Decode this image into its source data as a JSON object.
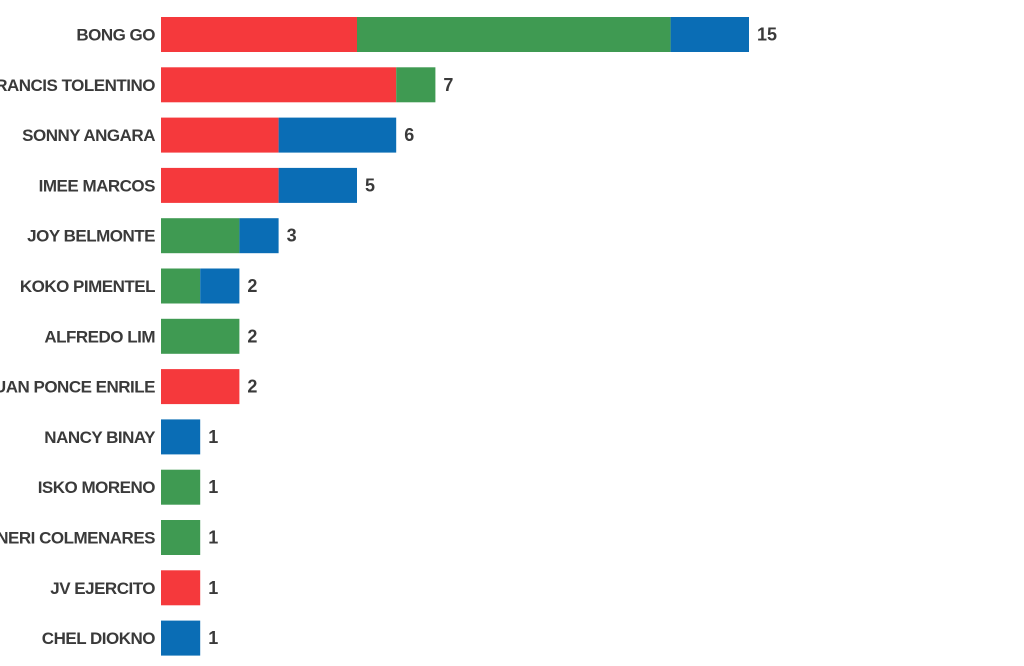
{
  "chart_data": {
    "type": "bar",
    "orientation": "horizontal",
    "stacked": true,
    "categories": [
      "BONG GO",
      "FRANCIS TOLENTINO",
      "SONNY ANGARA",
      "IMEE MARCOS",
      "JOY BELMONTE",
      "KOKO PIMENTEL",
      "ALFREDO LIM",
      "JUAN PONCE ENRILE",
      "NANCY BINAY",
      "ISKO MORENO",
      "NERI COLMENARES",
      "JV EJERCITO",
      "CHEL DIOKNO"
    ],
    "series": [
      {
        "color": "#f5393c",
        "values": [
          5,
          6,
          3,
          3,
          0,
          0,
          0,
          2,
          0,
          0,
          0,
          1,
          0
        ]
      },
      {
        "color": "#3f9a52",
        "values": [
          8,
          1,
          0,
          0,
          2,
          1,
          2,
          0,
          0,
          1,
          1,
          0,
          0
        ]
      },
      {
        "color": "#0a6db5",
        "values": [
          2,
          0,
          3,
          2,
          1,
          1,
          0,
          0,
          1,
          0,
          0,
          0,
          1
        ]
      }
    ],
    "totals": [
      "15",
      "7",
      "6",
      "5",
      "3",
      "2",
      "2",
      "2",
      "1",
      "1",
      "1",
      "1",
      "1"
    ],
    "xlim": [
      0,
      15
    ],
    "grid": false,
    "legend": "none"
  }
}
